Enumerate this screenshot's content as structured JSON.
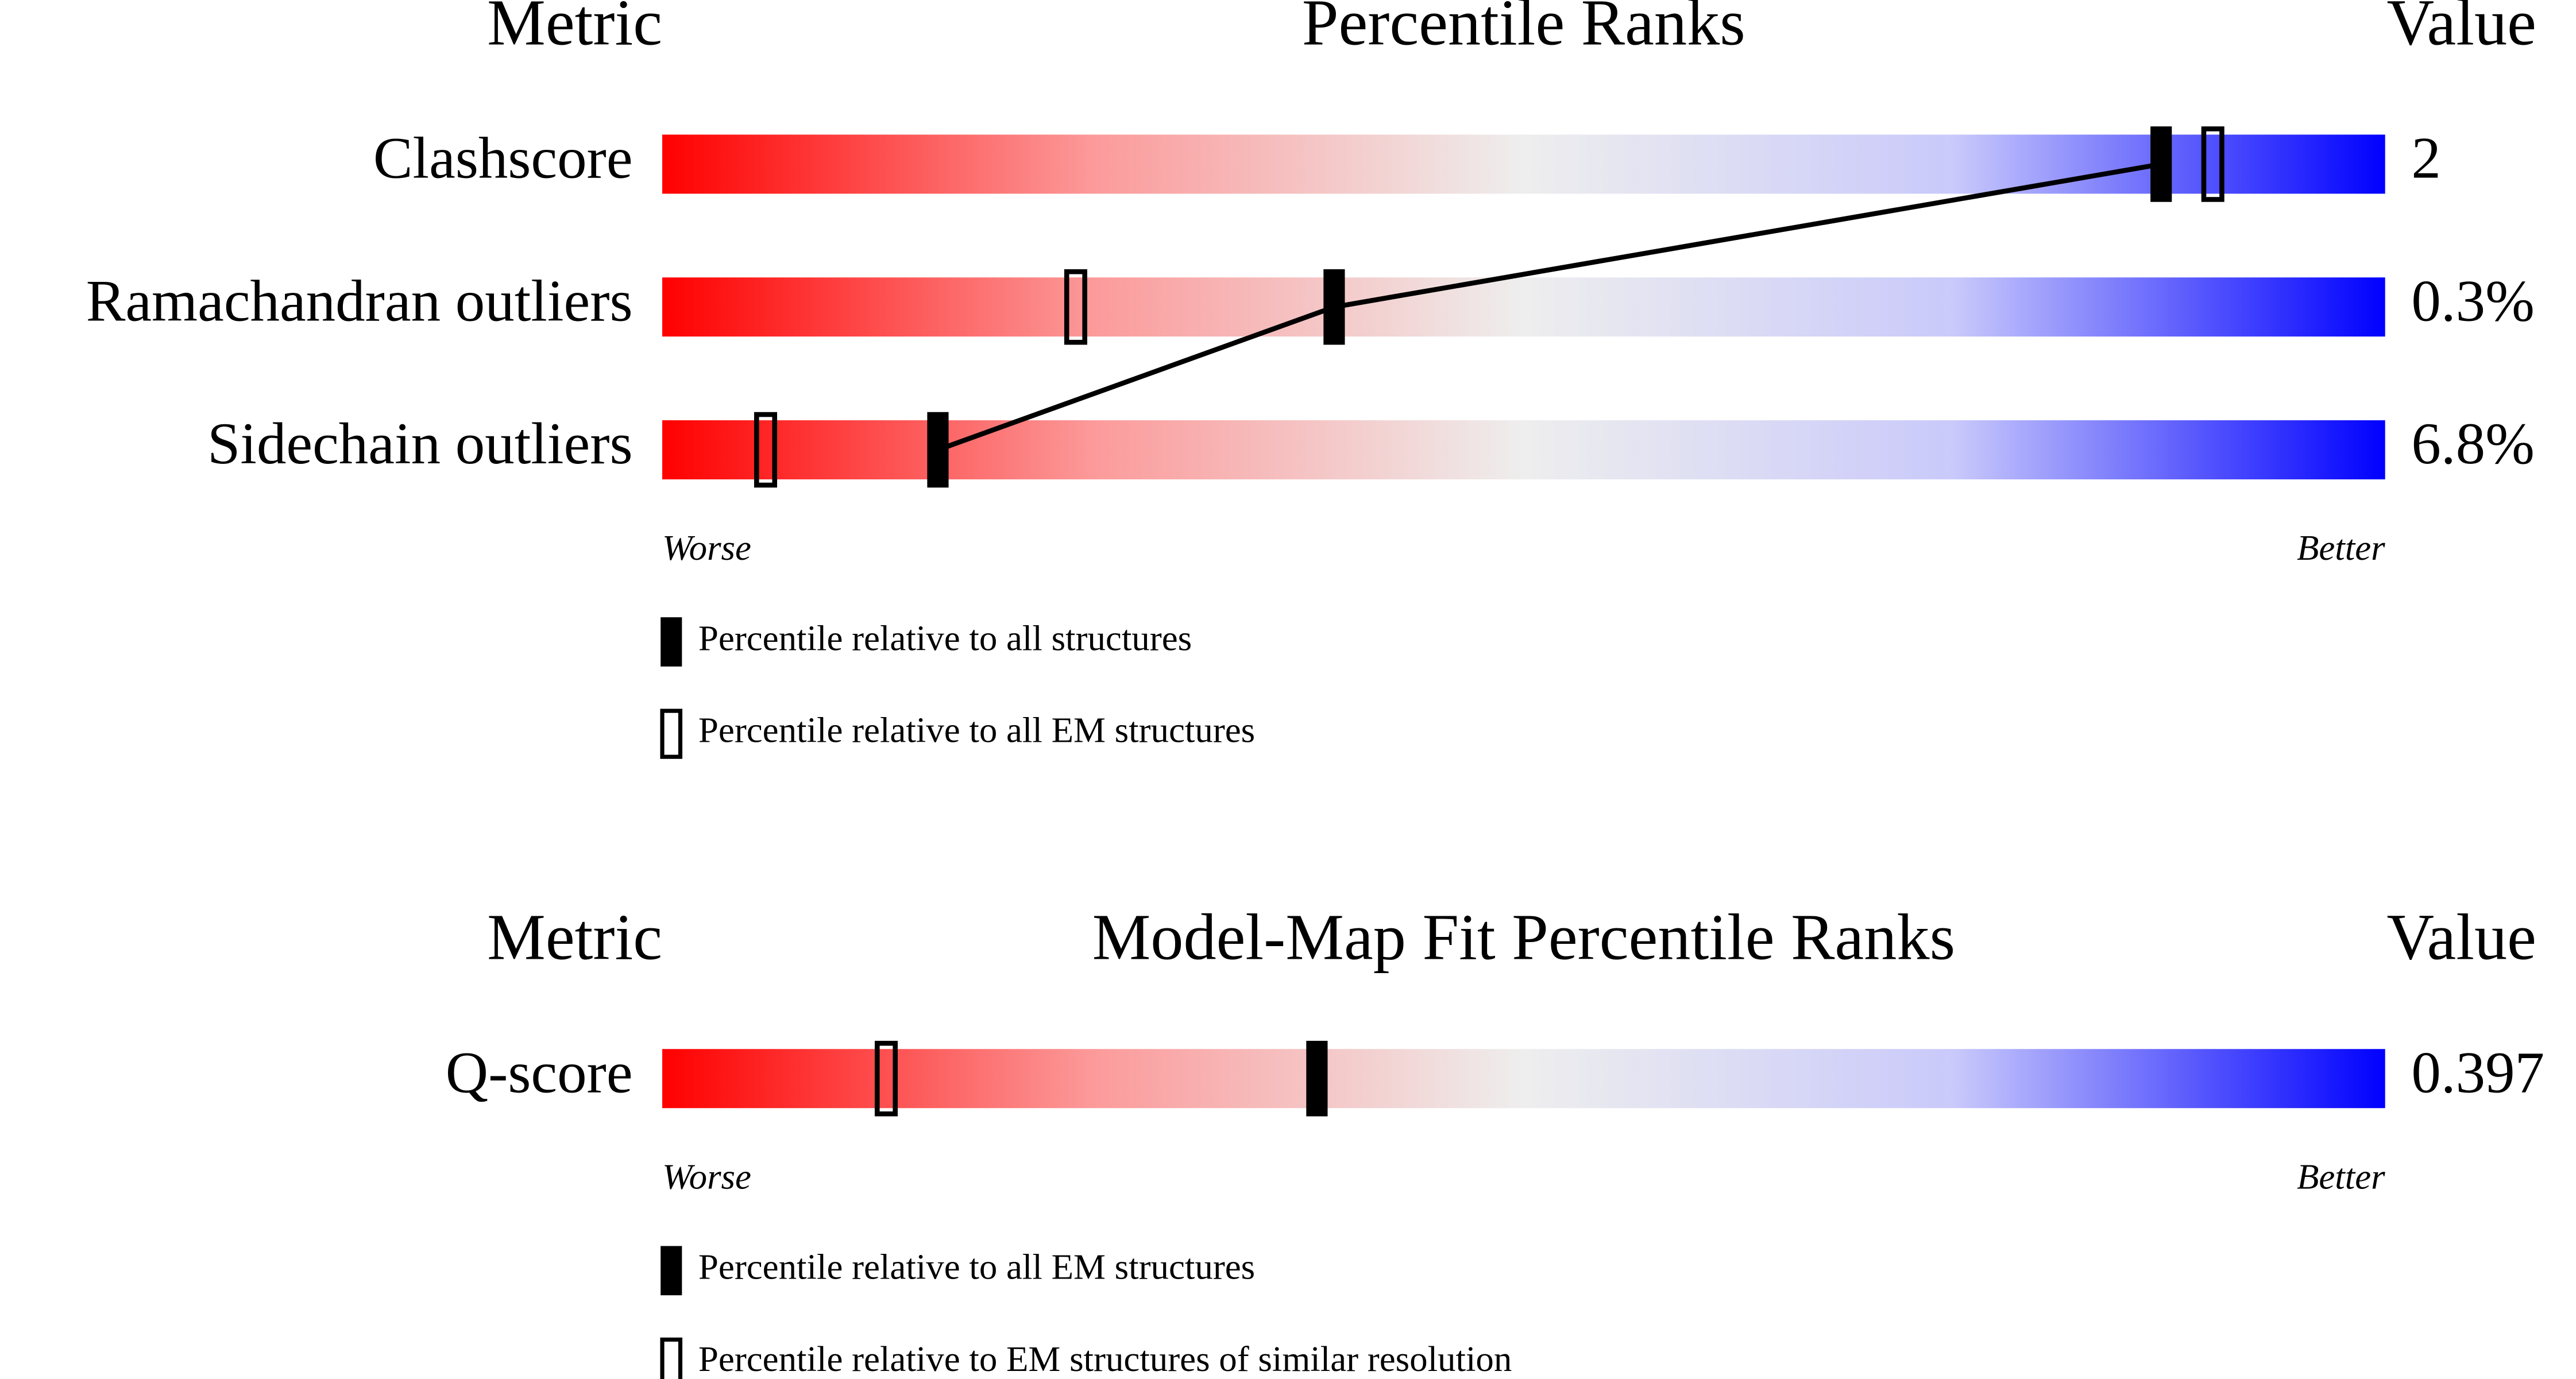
{
  "chart_data": [
    {
      "type": "percentile",
      "metric_header": "Metric",
      "title": "Percentile Ranks",
      "value_header": "Value",
      "categories": [
        "Clashscore",
        "Ramachandran outliers",
        "Sidechain outliers"
      ],
      "metric_values": [
        "2",
        "0.3%",
        "6.8%"
      ],
      "xlim": [
        0,
        100
      ],
      "worse_label": "Worse",
      "better_label": "Better",
      "connect_series": 0,
      "series": [
        {
          "name": "Percentile relative to all structures",
          "style": "filled",
          "color": "#000000",
          "values": [
            87,
            39,
            16
          ]
        },
        {
          "name": "Percentile relative to all EM structures",
          "style": "open",
          "color": "#000000",
          "values": [
            90,
            24,
            6
          ]
        }
      ]
    },
    {
      "type": "percentile",
      "metric_header": "Metric",
      "title": "Model-Map Fit Percentile Ranks",
      "value_header": "Value",
      "categories": [
        "Q-score"
      ],
      "metric_values": [
        "0.397"
      ],
      "xlim": [
        0,
        100
      ],
      "worse_label": "Worse",
      "better_label": "Better",
      "connect_series": 0,
      "series": [
        {
          "name": "Percentile relative to all EM structures",
          "style": "filled",
          "color": "#000000",
          "values": [
            38
          ]
        },
        {
          "name": "Percentile relative to EM structures of similar resolution",
          "style": "open",
          "color": "#000000",
          "values": [
            13
          ]
        }
      ]
    }
  ]
}
